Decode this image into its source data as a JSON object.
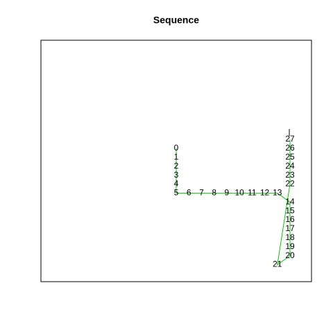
{
  "chart_data": {
    "type": "line",
    "title": "Sequence",
    "color": "#00cc00",
    "labels": [
      "0",
      "1",
      "2",
      "3",
      "4",
      "5",
      "6",
      "7",
      "8",
      "9",
      "10",
      "11",
      "12",
      "13",
      "14",
      "15",
      "16",
      "17",
      "18",
      "19",
      "20",
      "21",
      "22",
      "23",
      "24",
      "25",
      "26",
      "27"
    ],
    "x": [
      0,
      0,
      0,
      0,
      0,
      0,
      1,
      2,
      3,
      4,
      5,
      6,
      7,
      8,
      9,
      9,
      9,
      9,
      9,
      9,
      9,
      8,
      9,
      9,
      9,
      9,
      9,
      9
    ],
    "values": [
      0,
      -1,
      -2,
      -3,
      -4,
      -5,
      -5,
      -5,
      -5,
      -5,
      -5,
      -5,
      -5,
      -5,
      -6,
      -7,
      -8,
      -9,
      -10,
      -11,
      -12,
      -13,
      -4,
      -3,
      -2,
      -1,
      0,
      1
    ],
    "xlim": [
      -10.7,
      10.7
    ],
    "ylim": [
      -14.9,
      12.1
    ]
  }
}
